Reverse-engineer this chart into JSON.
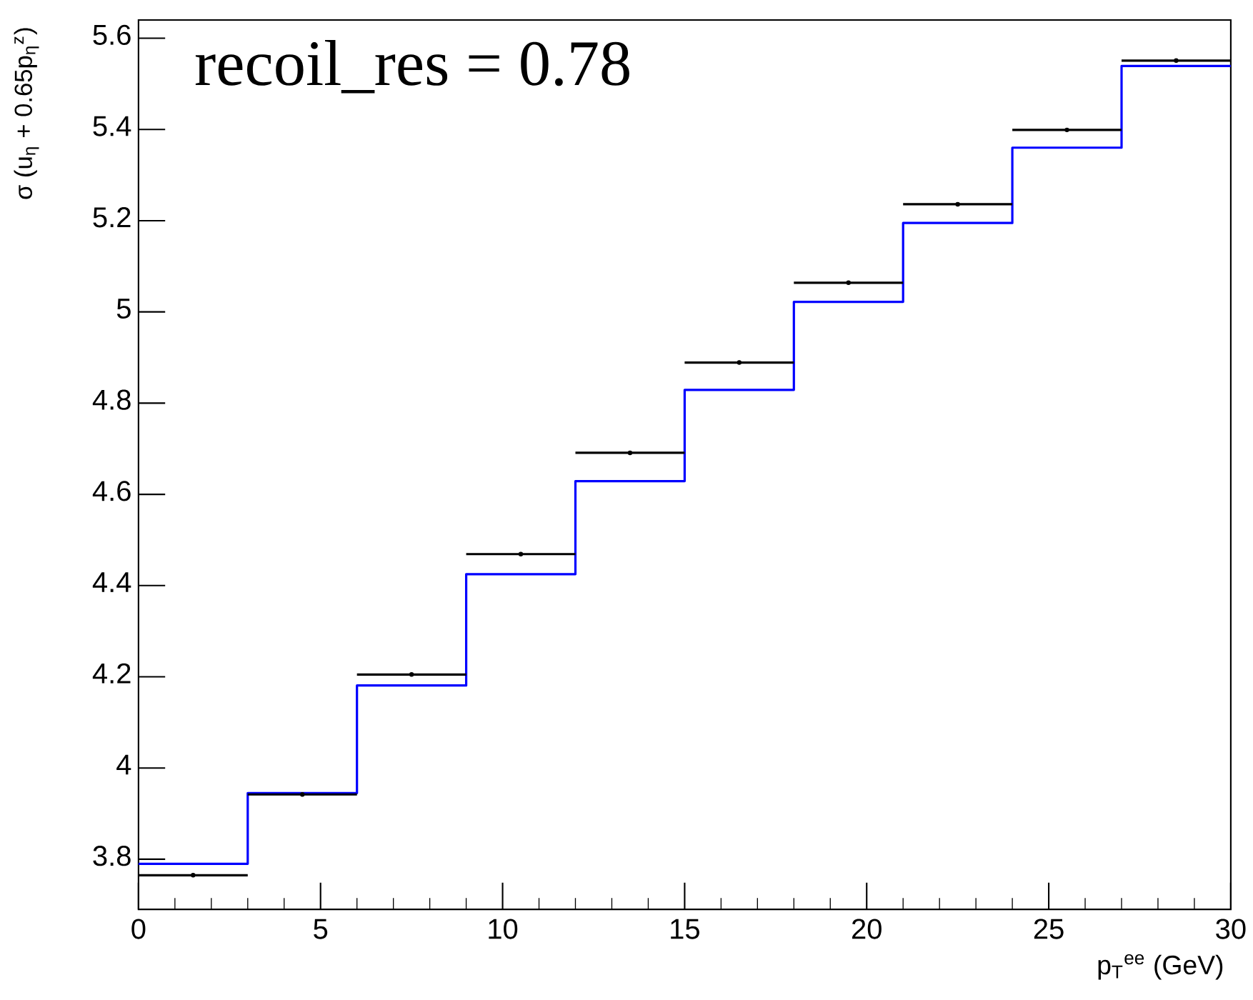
{
  "chart_data": {
    "type": "histogram",
    "xlabel": "p$_{T}$$^{ee}$ (GeV)",
    "ylabel": "σ (u$_{η}$ + 0.65p$_{η}$$^{z}$)",
    "annotations": [
      "recoil_res = 0.78"
    ],
    "bins": [
      0,
      3,
      6,
      9,
      12,
      15,
      18,
      21,
      24,
      27,
      30
    ],
    "series": [
      {
        "color": "#0000ff",
        "values": [
          3.79,
          3.945,
          4.181,
          4.425,
          4.629,
          4.829,
          5.022,
          5.195,
          5.36,
          5.539
        ]
      },
      {
        "type": "scatter",
        "color": "#000000",
        "marker": "circle",
        "x": [
          1.5,
          4.5,
          7.5,
          10.5,
          13.5,
          16.5,
          19.5,
          22.5,
          25.5,
          28.5
        ],
        "values": [
          3.765,
          3.942,
          4.205,
          4.469,
          4.691,
          4.889,
          5.064,
          5.236,
          5.399,
          5.551
        ],
        "xerrors": [
          1.5,
          1.5,
          1.5,
          1.5,
          1.5,
          1.5,
          1.5,
          1.5,
          1.5,
          1.5
        ]
      }
    ],
    "xlim": [
      0,
      30
    ],
    "ylim": [
      3.69,
      5.64
    ],
    "xticks": [
      0,
      5,
      10,
      15,
      20,
      25,
      30
    ],
    "yticks": [
      3.8,
      4,
      4.2,
      4.4,
      4.6,
      4.8,
      5,
      5.2,
      5.4,
      5.6
    ]
  }
}
